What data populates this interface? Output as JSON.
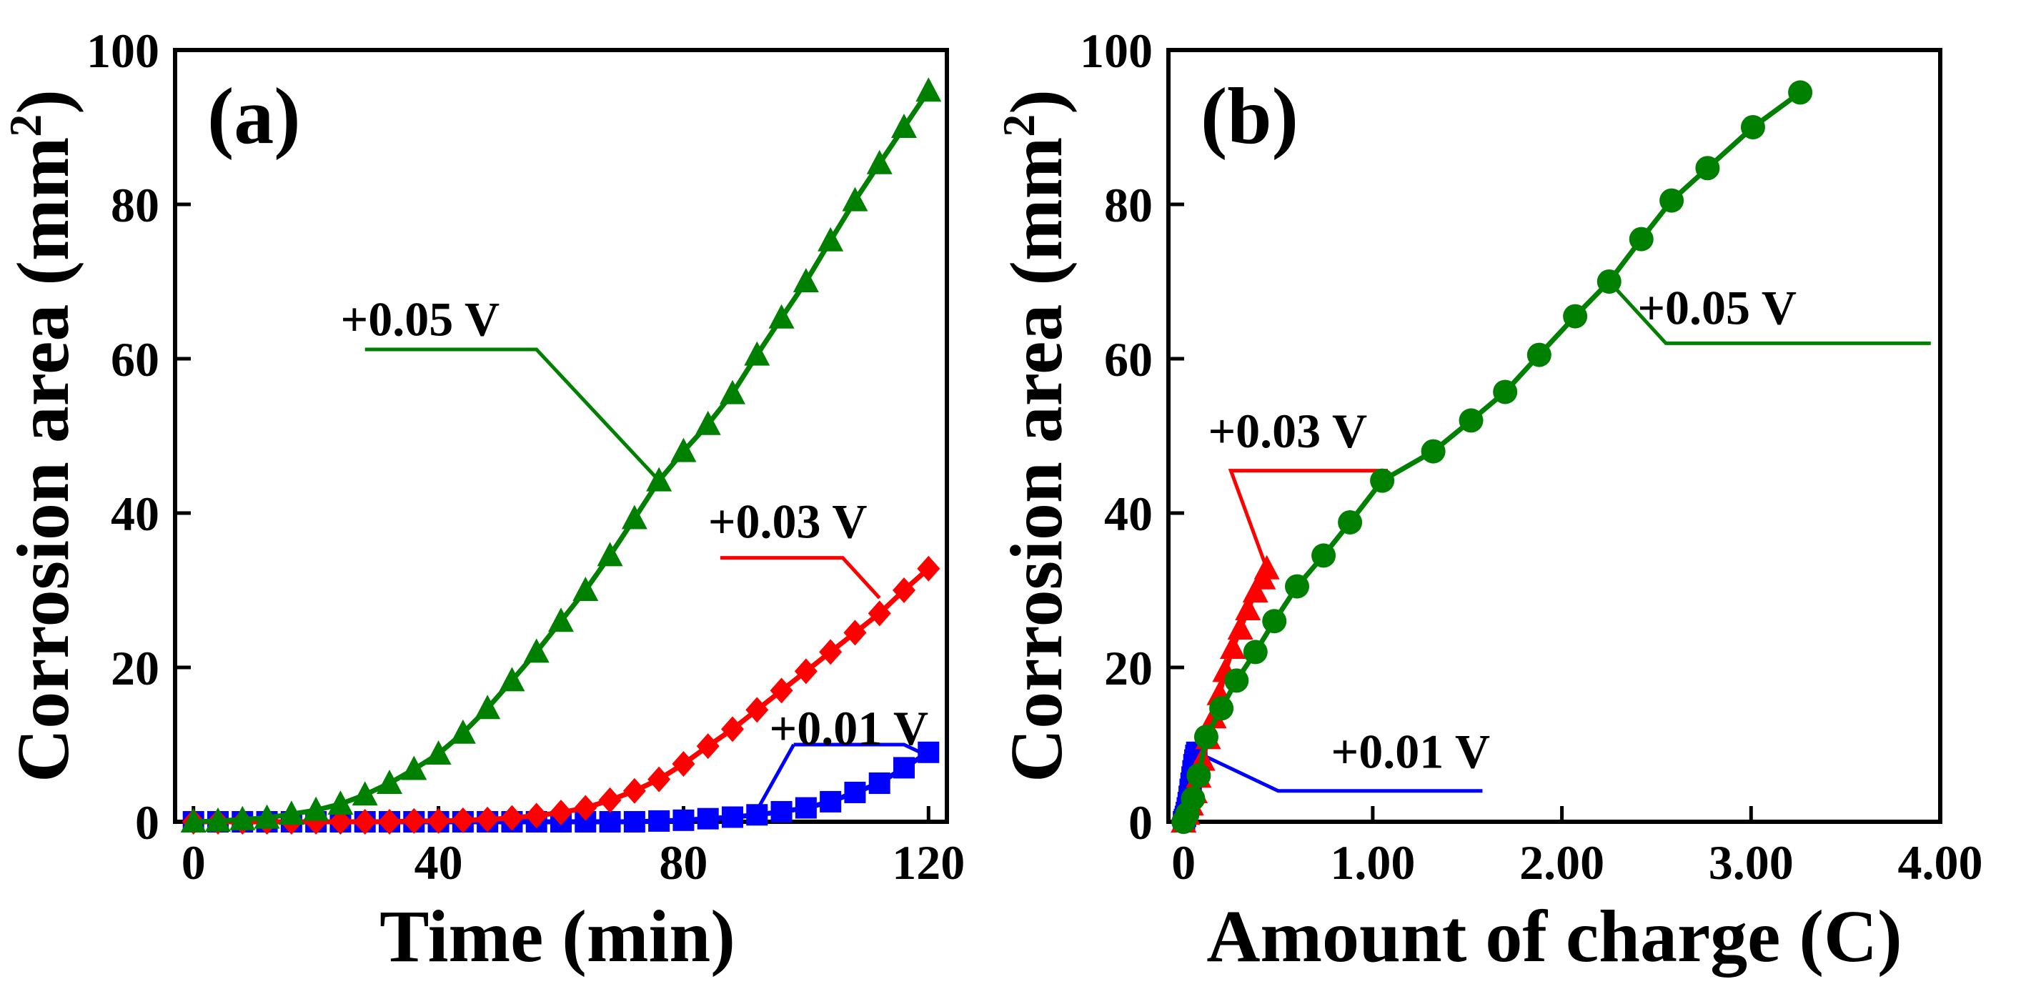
{
  "chart_data": [
    {
      "type": "line",
      "panel_label": "(a)",
      "xlabel": "Time (min)",
      "ylabel": "Corrosion area (mm",
      "ylabel_sup": "2",
      "ylabel_close": ")",
      "xlim": [
        -3,
        123
      ],
      "ylim": [
        0,
        100
      ],
      "xticks": [
        0,
        40,
        80,
        120
      ],
      "yticks": [
        0,
        20,
        40,
        60,
        80,
        100
      ],
      "xtick_decimals": 0,
      "series": [
        {
          "name": "+0.01 V",
          "color": "#0000ff",
          "marker": "square",
          "x": [
            0,
            4,
            8,
            12,
            16,
            20,
            24,
            28,
            32,
            36,
            40,
            44,
            48,
            52,
            56,
            60,
            64,
            68,
            72,
            76,
            80,
            84,
            88,
            92,
            96,
            100,
            104,
            108,
            112,
            116,
            120
          ],
          "y": [
            0,
            0,
            0,
            0,
            0,
            0,
            0,
            0,
            0,
            0,
            0,
            0,
            0,
            0,
            0,
            0,
            0,
            0,
            0,
            0.1,
            0.2,
            0.4,
            0.6,
            0.9,
            1.3,
            1.8,
            2.6,
            3.8,
            5.0,
            7.0,
            9.0
          ]
        },
        {
          "name": "+0.03 V",
          "color": "#ff0000",
          "marker": "diamond",
          "x": [
            0,
            4,
            8,
            12,
            16,
            20,
            24,
            28,
            32,
            36,
            40,
            44,
            48,
            52,
            56,
            60,
            64,
            68,
            72,
            76,
            80,
            84,
            88,
            92,
            96,
            100,
            104,
            108,
            112,
            116,
            120
          ],
          "y": [
            0,
            0,
            0,
            0,
            0,
            0,
            0,
            0,
            0,
            0.1,
            0.1,
            0.2,
            0.3,
            0.5,
            0.8,
            1.2,
            1.8,
            2.8,
            4.0,
            5.5,
            7.5,
            9.8,
            12.0,
            14.5,
            17.0,
            19.5,
            22.0,
            24.5,
            27.0,
            30.0,
            32.8
          ]
        },
        {
          "name": "+0.05 V",
          "color": "#008000",
          "marker": "triangle",
          "x": [
            0,
            4,
            8,
            12,
            16,
            20,
            24,
            28,
            32,
            36,
            40,
            44,
            48,
            52,
            56,
            60,
            64,
            68,
            72,
            76,
            80,
            84,
            88,
            92,
            96,
            100,
            104,
            108,
            112,
            116,
            120
          ],
          "y": [
            0,
            0.1,
            0.3,
            0.5,
            1.0,
            1.5,
            2.3,
            3.5,
            5.0,
            6.8,
            8.8,
            11.5,
            14.7,
            18.3,
            22.0,
            26.0,
            30.0,
            34.5,
            39.3,
            44.2,
            48.0,
            51.5,
            55.5,
            60.5,
            65.3,
            70.0,
            75.3,
            80.5,
            85.3,
            90.0,
            94.7
          ]
        }
      ],
      "annotations": [
        {
          "text": "+0.05 V",
          "color": "#008000",
          "label_x": 37,
          "label_y": 63,
          "underline": [
            [
              28,
              61.2
            ],
            [
              56,
              61.2
            ],
            [
              76,
              44.2
            ]
          ]
        },
        {
          "text": "+0.03 V",
          "color": "#ff0000",
          "label_x": 97,
          "label_y": 36.8,
          "underline": [
            [
              86,
              34.2
            ],
            [
              106,
              34.2
            ],
            [
              112,
              29
            ]
          ]
        },
        {
          "text": "+0.01 V",
          "color": "#0000ff",
          "label_x": 107,
          "label_y": 10,
          "underline": [
            [
              98,
              10
            ],
            [
              116,
              10
            ],
            [
              120,
              8.5
            ]
          ],
          "leader": [
            [
              98,
              10
            ],
            [
              92,
              1.5
            ]
          ]
        }
      ]
    },
    {
      "type": "line",
      "panel_label": "(b)",
      "xlabel": "Amount of charge (C)",
      "ylabel": "Corrosion area (mm",
      "ylabel_sup": "2",
      "ylabel_close": ")",
      "xlim": [
        -0.08,
        4.0
      ],
      "ylim": [
        0,
        100
      ],
      "xticks": [
        0,
        1.0,
        2.0,
        3.0,
        4.0
      ],
      "xtick_labels": [
        "0",
        "1.00",
        "2.00",
        "3.00",
        "4.00"
      ],
      "yticks": [
        0,
        20,
        40,
        60,
        80,
        100
      ],
      "series": [
        {
          "name": "+0.01 V",
          "color": "#0000ff",
          "marker": "square",
          "x": [
            0,
            0.005,
            0.01,
            0.015,
            0.02,
            0.025,
            0.03,
            0.035,
            0.04,
            0.045,
            0.05,
            0.055,
            0.06,
            0.065,
            0.07
          ],
          "y": [
            0,
            0.3,
            0.7,
            1.2,
            1.8,
            2.5,
            3.3,
            4.2,
            5.0,
            5.8,
            6.6,
            7.4,
            8.0,
            8.6,
            9.0
          ]
        },
        {
          "name": "+0.03 V",
          "color": "#ff0000",
          "marker": "triangle",
          "x": [
            0,
            0.02,
            0.04,
            0.06,
            0.08,
            0.1,
            0.13,
            0.16,
            0.19,
            0.22,
            0.26,
            0.3,
            0.34,
            0.38,
            0.42,
            0.44
          ],
          "y": [
            0,
            1.0,
            2.2,
            3.8,
            5.8,
            8.0,
            10.8,
            13.5,
            16.5,
            19.5,
            22.5,
            25.0,
            27.5,
            29.8,
            31.5,
            32.8
          ]
        },
        {
          "name": "+0.05 V",
          "color": "#008000",
          "marker": "circle",
          "x": [
            0,
            0.02,
            0.05,
            0.08,
            0.12,
            0.2,
            0.28,
            0.38,
            0.48,
            0.6,
            0.74,
            0.88,
            1.05,
            1.32,
            1.52,
            1.7,
            1.88,
            2.07,
            2.25,
            2.42,
            2.58,
            2.77,
            3.01,
            3.26
          ],
          "y": [
            0,
            1.0,
            3.0,
            6.0,
            11.0,
            14.7,
            18.3,
            22.0,
            26.0,
            30.5,
            34.5,
            38.8,
            44.2,
            48.0,
            52.0,
            55.7,
            60.5,
            65.5,
            70.0,
            75.5,
            80.5,
            84.7,
            90.0,
            94.5
          ]
        }
      ],
      "annotations": [
        {
          "text": "+0.05 V",
          "color": "#008000",
          "label_x": 2.82,
          "label_y": 64.5,
          "underline": [
            [
              2.25,
              70
            ],
            [
              2.55,
              62
            ],
            [
              3.95,
              62
            ]
          ]
        },
        {
          "text": "+0.03 V",
          "color": "#ff0000",
          "label_x": 0.55,
          "label_y": 48.5,
          "underline": [
            [
              0.44,
              32.8
            ],
            [
              0.25,
              45.5
            ],
            [
              1.08,
              45.5
            ]
          ]
        },
        {
          "text": "+0.01 V",
          "color": "#0000ff",
          "label_x": 1.2,
          "label_y": 7,
          "underline": [
            [
              0.07,
              9
            ],
            [
              0.5,
              4
            ],
            [
              1.58,
              4
            ]
          ]
        }
      ]
    }
  ]
}
